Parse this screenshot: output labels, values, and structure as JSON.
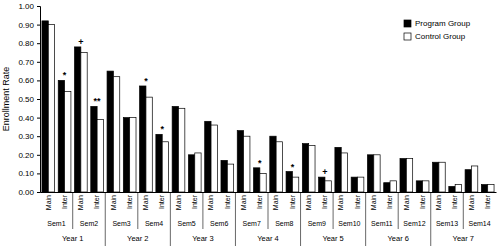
{
  "chart_data": {
    "type": "bar",
    "y_label": "Enrollment Rate",
    "categories": [
      "Main",
      "Inter",
      "Main",
      "Inter",
      "Main",
      "Inter",
      "Main",
      "Inter",
      "Main",
      "Inter",
      "Main",
      "Inter",
      "Main",
      "Inter",
      "Main",
      "Inter",
      "Main",
      "Inter",
      "Main",
      "Inter",
      "Main",
      "Inter",
      "Main",
      "Inter",
      "Main",
      "Inter",
      "Main",
      "Inter"
    ],
    "semesters": [
      "Sem1",
      "Sem2",
      "Sem3",
      "Sem4",
      "Sem5",
      "Sem6",
      "Sem7",
      "Sem8",
      "Sem9",
      "Sem10",
      "Sem11",
      "Sem12",
      "Sem13",
      "Sem14"
    ],
    "years": [
      "Year 1",
      "Year 2",
      "Year 3",
      "Year 4",
      "Year 5",
      "Year 6",
      "Year 7"
    ],
    "series": [
      {
        "name": "Program Group",
        "color": "#000000",
        "values": [
          0.92,
          0.6,
          0.78,
          0.46,
          0.65,
          0.4,
          0.57,
          0.31,
          0.46,
          0.2,
          0.38,
          0.17,
          0.33,
          0.13,
          0.3,
          0.11,
          0.26,
          0.08,
          0.24,
          0.08,
          0.2,
          0.05,
          0.18,
          0.06,
          0.16,
          0.03,
          0.12,
          0.04
        ]
      },
      {
        "name": "Control Group",
        "color": "#ffffff",
        "values": [
          0.9,
          0.54,
          0.75,
          0.39,
          0.62,
          0.4,
          0.51,
          0.27,
          0.45,
          0.21,
          0.36,
          0.15,
          0.3,
          0.1,
          0.27,
          0.08,
          0.25,
          0.06,
          0.21,
          0.08,
          0.2,
          0.06,
          0.18,
          0.06,
          0.16,
          0.04,
          0.14,
          0.04
        ]
      }
    ],
    "significance": [
      null,
      "*",
      "+",
      "**",
      null,
      null,
      "*",
      "*",
      null,
      null,
      null,
      null,
      null,
      "*",
      null,
      "*",
      null,
      "+",
      null,
      null,
      null,
      null,
      null,
      null,
      null,
      null,
      null,
      null
    ],
    "ylim": [
      0,
      1
    ],
    "yticks": [
      {
        "value": 0,
        "label": "0.00"
      },
      {
        "value": 0.1,
        "label": "0.10"
      },
      {
        "value": 0.2,
        "label": "0.20"
      },
      {
        "value": 0.3,
        "label": "0.30"
      },
      {
        "value": 0.4,
        "label": "0.40"
      },
      {
        "value": 0.5,
        "label": "0.50"
      },
      {
        "value": 0.6,
        "label": "0.60"
      },
      {
        "value": 0.7,
        "label": "0.70"
      },
      {
        "value": 0.8,
        "label": "0.80"
      },
      {
        "value": 0.9,
        "label": "0.90"
      },
      {
        "value": 1,
        "label": "1.00"
      }
    ],
    "grid": false,
    "legend": "upper right"
  }
}
